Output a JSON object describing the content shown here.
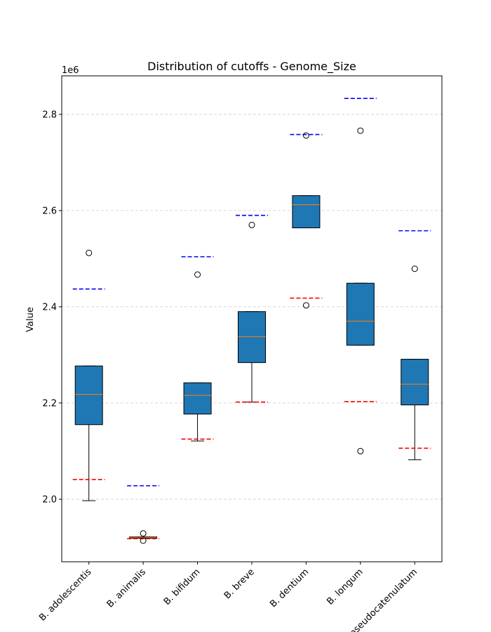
{
  "chart_data": {
    "type": "box",
    "title": "Distribution of cutoffs - Genome_Size",
    "xlabel": "",
    "ylabel": "Value",
    "offset_label": "1e6",
    "ylim": [
      1.87,
      2.88
    ],
    "yticks": [
      2.0,
      2.2,
      2.4,
      2.6,
      2.8
    ],
    "ytick_labels": [
      "2.0",
      "2.2",
      "2.4",
      "2.6",
      "2.8"
    ],
    "grid": "y-dashed",
    "colors": {
      "box_fill": "#1f77b4",
      "median": "#ff7f0e",
      "upper_cutoff": "#0000ff",
      "lower_cutoff": "#ff0000",
      "grid": "#cccccc"
    },
    "categories": [
      "B. adolescentis",
      "B. animalis",
      "B. bifidum",
      "B. breve",
      "B. dentium",
      "B. longum",
      "B. pseudocatenulatum"
    ],
    "boxes": [
      {
        "whislo": 1.997,
        "q1": 2.155,
        "med": 2.218,
        "q3": 2.277,
        "whishi": 2.277,
        "fliers": [
          2.512
        ]
      },
      {
        "whislo": 1.919,
        "q1": 1.919,
        "med": 1.921,
        "q3": 1.922,
        "whishi": 1.922,
        "fliers": [
          1.929,
          1.914
        ]
      },
      {
        "whislo": 2.121,
        "q1": 2.177,
        "med": 2.216,
        "q3": 2.242,
        "whishi": 2.242,
        "fliers": [
          2.467
        ]
      },
      {
        "whislo": 2.202,
        "q1": 2.284,
        "med": 2.338,
        "q3": 2.39,
        "whishi": 2.39,
        "fliers": [
          2.57
        ]
      },
      {
        "whislo": 2.564,
        "q1": 2.564,
        "med": 2.612,
        "q3": 2.631,
        "whishi": 2.631,
        "fliers": [
          2.756,
          2.403
        ]
      },
      {
        "whislo": 2.32,
        "q1": 2.32,
        "med": 2.37,
        "q3": 2.449,
        "whishi": 2.449,
        "fliers": [
          2.766,
          2.1
        ]
      },
      {
        "whislo": 2.082,
        "q1": 2.196,
        "med": 2.239,
        "q3": 2.291,
        "whishi": 2.291,
        "fliers": [
          2.479
        ]
      }
    ],
    "upper_cutoffs": [
      2.437,
      2.028,
      2.504,
      2.59,
      2.758,
      2.833,
      2.558
    ],
    "lower_cutoffs": [
      2.041,
      1.918,
      2.125,
      2.202,
      2.418,
      2.203,
      2.106
    ]
  }
}
